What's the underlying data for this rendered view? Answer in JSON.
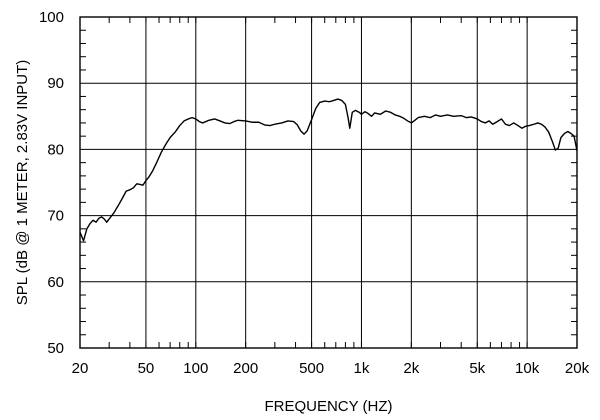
{
  "chart_data": {
    "type": "line",
    "title": "",
    "xlabel": "FREQUENCY  (HZ)",
    "ylabel": "SPL (dB @ 1 METER, 2.83V INPUT)",
    "x_scale": "log",
    "xlim": [
      20,
      20000
    ],
    "ylim": [
      50,
      100
    ],
    "grid": true,
    "x_major_ticks": [
      {
        "value": 20,
        "label": "20"
      },
      {
        "value": 50,
        "label": "50"
      },
      {
        "value": 100,
        "label": "100"
      },
      {
        "value": 200,
        "label": "200"
      },
      {
        "value": 500,
        "label": "500"
      },
      {
        "value": 1000,
        "label": "1k"
      },
      {
        "value": 2000,
        "label": "2k"
      },
      {
        "value": 5000,
        "label": "5k"
      },
      {
        "value": 10000,
        "label": "10k"
      },
      {
        "value": 20000,
        "label": "20k"
      }
    ],
    "y_major_ticks": [
      {
        "value": 50,
        "label": "50"
      },
      {
        "value": 60,
        "label": "60"
      },
      {
        "value": 70,
        "label": "70"
      },
      {
        "value": 80,
        "label": "80"
      },
      {
        "value": 90,
        "label": "90"
      },
      {
        "value": 100,
        "label": "100"
      }
    ],
    "series": [
      {
        "color": "#000000",
        "points": [
          [
            20,
            67.5
          ],
          [
            21,
            66.2
          ],
          [
            22,
            68.0
          ],
          [
            23,
            68.8
          ],
          [
            24,
            69.3
          ],
          [
            25,
            69.0
          ],
          [
            26,
            69.6
          ],
          [
            27,
            69.8
          ],
          [
            28,
            69.5
          ],
          [
            29,
            69.0
          ],
          [
            30,
            69.5
          ],
          [
            32,
            70.4
          ],
          [
            34,
            71.5
          ],
          [
            36,
            72.6
          ],
          [
            38,
            73.7
          ],
          [
            40,
            73.9
          ],
          [
            42,
            74.2
          ],
          [
            44,
            74.8
          ],
          [
            46,
            74.7
          ],
          [
            48,
            74.6
          ],
          [
            50,
            75.3
          ],
          [
            52,
            75.8
          ],
          [
            55,
            76.8
          ],
          [
            58,
            78.0
          ],
          [
            62,
            79.6
          ],
          [
            66,
            80.8
          ],
          [
            70,
            81.8
          ],
          [
            75,
            82.6
          ],
          [
            80,
            83.6
          ],
          [
            85,
            84.3
          ],
          [
            90,
            84.6
          ],
          [
            95,
            84.8
          ],
          [
            100,
            84.6
          ],
          [
            105,
            84.2
          ],
          [
            110,
            84.0
          ],
          [
            120,
            84.4
          ],
          [
            130,
            84.6
          ],
          [
            140,
            84.3
          ],
          [
            150,
            84.0
          ],
          [
            160,
            83.9
          ],
          [
            170,
            84.2
          ],
          [
            180,
            84.4
          ],
          [
            200,
            84.3
          ],
          [
            220,
            84.1
          ],
          [
            240,
            84.1
          ],
          [
            260,
            83.7
          ],
          [
            280,
            83.6
          ],
          [
            300,
            83.8
          ],
          [
            330,
            84.0
          ],
          [
            360,
            84.3
          ],
          [
            390,
            84.2
          ],
          [
            410,
            83.7
          ],
          [
            430,
            82.8
          ],
          [
            450,
            82.3
          ],
          [
            470,
            82.8
          ],
          [
            500,
            84.5
          ],
          [
            530,
            86.2
          ],
          [
            560,
            87.1
          ],
          [
            600,
            87.3
          ],
          [
            640,
            87.2
          ],
          [
            680,
            87.4
          ],
          [
            720,
            87.6
          ],
          [
            760,
            87.4
          ],
          [
            800,
            86.8
          ],
          [
            830,
            84.8
          ],
          [
            850,
            83.2
          ],
          [
            880,
            85.6
          ],
          [
            920,
            85.9
          ],
          [
            970,
            85.6
          ],
          [
            1000,
            85.3
          ],
          [
            1050,
            85.7
          ],
          [
            1100,
            85.4
          ],
          [
            1150,
            85.0
          ],
          [
            1200,
            85.5
          ],
          [
            1300,
            85.3
          ],
          [
            1400,
            85.8
          ],
          [
            1500,
            85.6
          ],
          [
            1600,
            85.2
          ],
          [
            1700,
            85.0
          ],
          [
            1800,
            84.7
          ],
          [
            1900,
            84.3
          ],
          [
            2000,
            84.0
          ],
          [
            2100,
            84.4
          ],
          [
            2200,
            84.8
          ],
          [
            2400,
            85.0
          ],
          [
            2600,
            84.8
          ],
          [
            2800,
            85.2
          ],
          [
            3000,
            85.0
          ],
          [
            3300,
            85.2
          ],
          [
            3600,
            85.0
          ],
          [
            4000,
            85.1
          ],
          [
            4300,
            84.8
          ],
          [
            4600,
            84.9
          ],
          [
            5000,
            84.6
          ],
          [
            5300,
            84.2
          ],
          [
            5600,
            84.0
          ],
          [
            5900,
            84.3
          ],
          [
            6200,
            83.8
          ],
          [
            6600,
            84.2
          ],
          [
            7000,
            84.6
          ],
          [
            7400,
            83.8
          ],
          [
            7800,
            83.6
          ],
          [
            8300,
            84.0
          ],
          [
            8800,
            83.6
          ],
          [
            9300,
            83.2
          ],
          [
            9800,
            83.5
          ],
          [
            10300,
            83.6
          ],
          [
            11000,
            83.8
          ],
          [
            11600,
            84.0
          ],
          [
            12200,
            83.8
          ],
          [
            12800,
            83.4
          ],
          [
            13500,
            82.6
          ],
          [
            14200,
            81.2
          ],
          [
            14800,
            79.9
          ],
          [
            15400,
            80.2
          ],
          [
            16000,
            81.8
          ],
          [
            16800,
            82.4
          ],
          [
            17600,
            82.7
          ],
          [
            18400,
            82.4
          ],
          [
            19200,
            82.0
          ],
          [
            20000,
            79.8
          ]
        ]
      }
    ]
  }
}
